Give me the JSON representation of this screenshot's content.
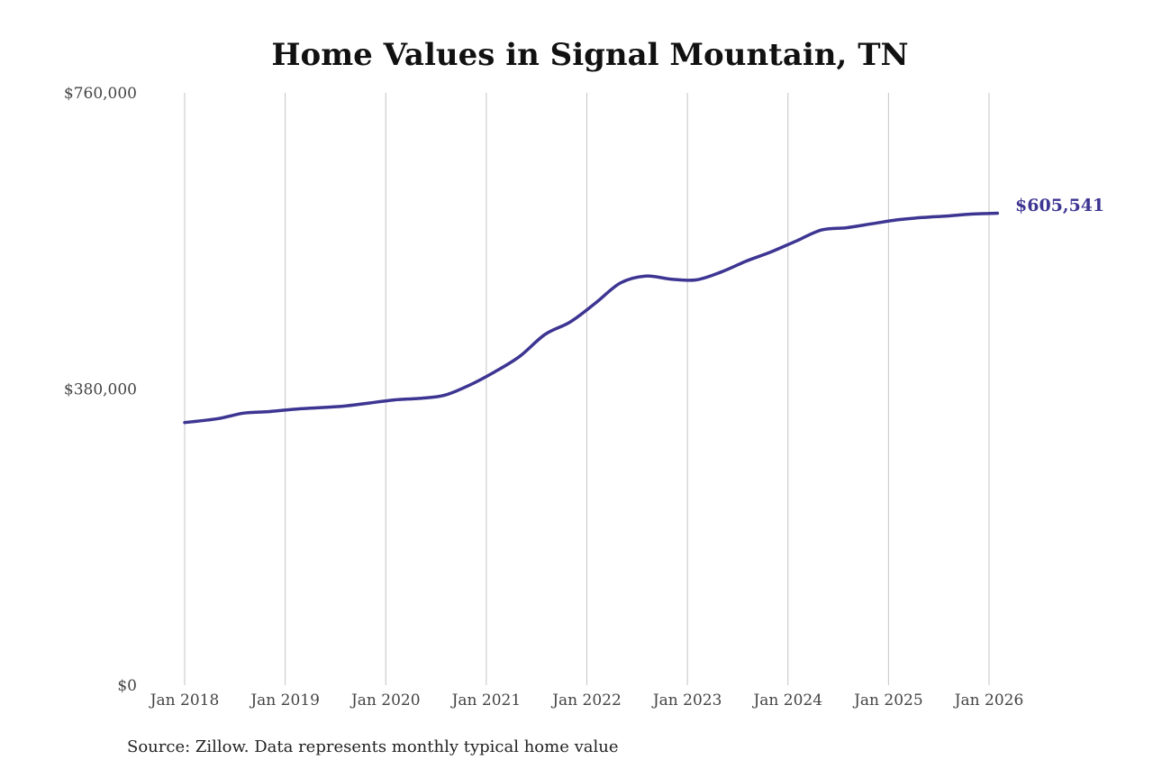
{
  "chart_data": {
    "type": "line",
    "title": "Home Values in Signal Mountain, TN",
    "xlabel": "",
    "ylabel": "",
    "ylim": [
      0,
      760000
    ],
    "y_ticks": [
      {
        "value": 0,
        "label": "$0"
      },
      {
        "value": 380000,
        "label": "$380,000"
      },
      {
        "value": 760000,
        "label": "$760,000"
      }
    ],
    "x_ticks": [
      "Jan 2018",
      "Jan 2019",
      "Jan 2020",
      "Jan 2021",
      "Jan 2022",
      "Jan 2023",
      "Jan 2024",
      "Jan 2025",
      "Jan 2026"
    ],
    "grid": "vertical",
    "series": [
      {
        "color": "#3d3592",
        "end_label": "$605,541",
        "points": [
          {
            "x": "2018-01",
            "y": 337000
          },
          {
            "x": "2018-05",
            "y": 342000
          },
          {
            "x": "2018-08",
            "y": 349000
          },
          {
            "x": "2018-11",
            "y": 351000
          },
          {
            "x": "2019-02",
            "y": 354000
          },
          {
            "x": "2019-05",
            "y": 356000
          },
          {
            "x": "2019-08",
            "y": 358000
          },
          {
            "x": "2019-11",
            "y": 362000
          },
          {
            "x": "2020-02",
            "y": 366000
          },
          {
            "x": "2020-05",
            "y": 368000
          },
          {
            "x": "2020-08",
            "y": 372000
          },
          {
            "x": "2020-11",
            "y": 385000
          },
          {
            "x": "2021-02",
            "y": 402000
          },
          {
            "x": "2021-05",
            "y": 422000
          },
          {
            "x": "2021-08",
            "y": 450000
          },
          {
            "x": "2021-11",
            "y": 466000
          },
          {
            "x": "2022-02",
            "y": 490000
          },
          {
            "x": "2022-05",
            "y": 516000
          },
          {
            "x": "2022-08",
            "y": 525000
          },
          {
            "x": "2022-11",
            "y": 521000
          },
          {
            "x": "2023-02",
            "y": 520000
          },
          {
            "x": "2023-05",
            "y": 530000
          },
          {
            "x": "2023-08",
            "y": 544000
          },
          {
            "x": "2023-11",
            "y": 556000
          },
          {
            "x": "2024-02",
            "y": 570000
          },
          {
            "x": "2024-05",
            "y": 584000
          },
          {
            "x": "2024-08",
            "y": 587000
          },
          {
            "x": "2024-11",
            "y": 592000
          },
          {
            "x": "2025-02",
            "y": 597000
          },
          {
            "x": "2025-05",
            "y": 600000
          },
          {
            "x": "2025-08",
            "y": 602000
          },
          {
            "x": "2025-11",
            "y": 604500
          },
          {
            "x": "2026-02",
            "y": 605541
          }
        ]
      }
    ],
    "source": "Source: Zillow. Data represents monthly typical home value"
  }
}
